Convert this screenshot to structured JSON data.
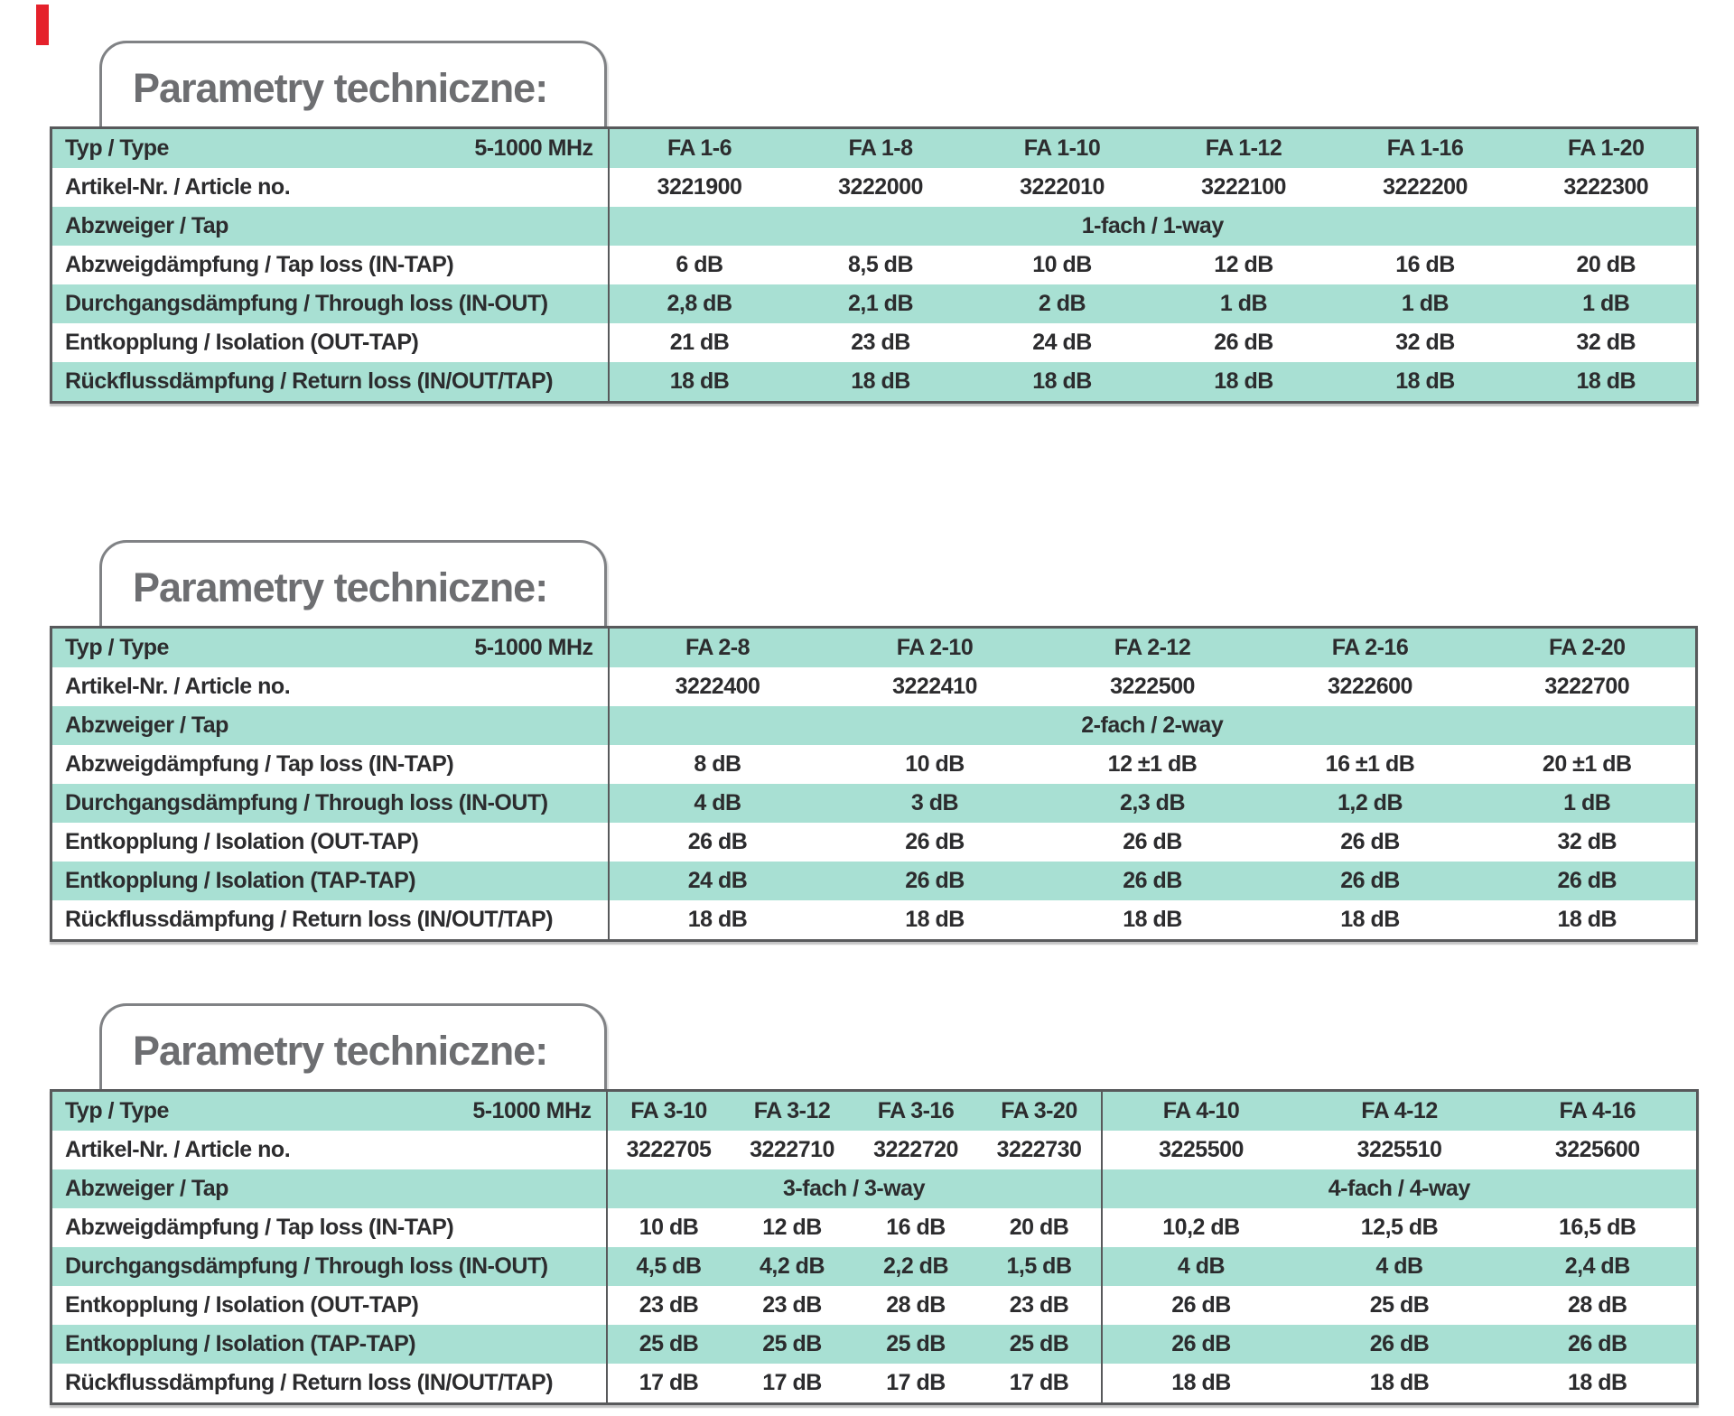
{
  "colors": {
    "teal_band": "#a8e0d3",
    "table_border": "#58595b",
    "title_box_border": "#808285",
    "title_text": "#6d6e71",
    "cell_text": "#2c2c2e",
    "red_mark": "#e5212b"
  },
  "decor": {
    "red_mark": "red-rectangle-top-left"
  },
  "tables": [
    {
      "title": "Parametry techniczne:",
      "type_label": "Typ / Type",
      "freq_label": "5-1000 MHz",
      "columns": [
        "FA 1-6",
        "FA 1-8",
        "FA 1-10",
        "FA 1-12",
        "FA 1-16",
        "FA 1-20"
      ],
      "rows": [
        {
          "label": "Artikel-Nr. / Article no.",
          "values": [
            "3221900",
            "3222000",
            "3222010",
            "3222100",
            "3222200",
            "3222300"
          ]
        },
        {
          "label": "Abzweiger / Tap",
          "spans": [
            {
              "text": "1-fach / 1-way",
              "cols": 6
            }
          ]
        },
        {
          "label": "Abzweigdämpfung / Tap loss (IN-TAP)",
          "values": [
            "6 dB",
            "8,5 dB",
            "10 dB",
            "12 dB",
            "16 dB",
            "20 dB"
          ]
        },
        {
          "label": "Durchgangsdämpfung / Through loss (IN-OUT)",
          "values": [
            "2,8 dB",
            "2,1 dB",
            "2 dB",
            "1 dB",
            "1 dB",
            "1 dB"
          ]
        },
        {
          "label": "Entkopplung / Isolation (OUT-TAP)",
          "values": [
            "21 dB",
            "23 dB",
            "24 dB",
            "26 dB",
            "32 dB",
            "32 dB"
          ]
        },
        {
          "label": "Rückflussdämpfung / Return loss (IN/OUT/TAP)",
          "values": [
            "18 dB",
            "18 dB",
            "18 dB",
            "18 dB",
            "18 dB",
            "18 dB"
          ]
        }
      ]
    },
    {
      "title": "Parametry techniczne:",
      "type_label": "Typ / Type",
      "freq_label": "5-1000 MHz",
      "columns": [
        "FA 2-8",
        "FA 2-10",
        "FA 2-12",
        "FA 2-16",
        "FA 2-20"
      ],
      "rows": [
        {
          "label": "Artikel-Nr. / Article no.",
          "values": [
            "3222400",
            "3222410",
            "3222500",
            "3222600",
            "3222700"
          ]
        },
        {
          "label": "Abzweiger / Tap",
          "spans": [
            {
              "text": "2-fach / 2-way",
              "cols": 5
            }
          ]
        },
        {
          "label": "Abzweigdämpfung / Tap loss (IN-TAP)",
          "values": [
            "8 dB",
            "10 dB",
            "12 ±1 dB",
            "16 ±1 dB",
            "20 ±1 dB"
          ]
        },
        {
          "label": "Durchgangsdämpfung / Through loss (IN-OUT)",
          "values": [
            "4 dB",
            "3 dB",
            "2,3 dB",
            "1,2 dB",
            "1 dB"
          ]
        },
        {
          "label": "Entkopplung / Isolation (OUT-TAP)",
          "values": [
            "26 dB",
            "26 dB",
            "26 dB",
            "26 dB",
            "32 dB"
          ]
        },
        {
          "label": "Entkopplung / Isolation (TAP-TAP)",
          "values": [
            "24 dB",
            "26 dB",
            "26 dB",
            "26 dB",
            "26 dB"
          ]
        },
        {
          "label": "Rückflussdämpfung / Return loss (IN/OUT/TAP)",
          "values": [
            "18 dB",
            "18 dB",
            "18 dB",
            "18 dB",
            "18 dB"
          ]
        }
      ]
    },
    {
      "title": "Parametry techniczne:",
      "type_label": "Typ / Type",
      "freq_label": "5-1000 MHz",
      "columns": [
        "FA 3-10",
        "FA 3-12",
        "FA 3-16",
        "FA 3-20",
        "FA 4-10",
        "FA 4-12",
        "FA 4-16"
      ],
      "rows": [
        {
          "label": "Artikel-Nr. / Article no.",
          "values": [
            "3222705",
            "3222710",
            "3222720",
            "3222730",
            "3225500",
            "3225510",
            "3225600"
          ]
        },
        {
          "label": "Abzweiger / Tap",
          "spans": [
            {
              "text": "3-fach / 3-way",
              "cols": 4
            },
            {
              "text": "4-fach / 4-way",
              "cols": 3
            }
          ]
        },
        {
          "label": "Abzweigdämpfung / Tap loss (IN-TAP)",
          "values": [
            "10 dB",
            "12 dB",
            "16 dB",
            "20 dB",
            "10,2 dB",
            "12,5 dB",
            "16,5 dB"
          ]
        },
        {
          "label": "Durchgangsdämpfung / Through loss (IN-OUT)",
          "values": [
            "4,5 dB",
            "4,2 dB",
            "2,2 dB",
            "1,5 dB",
            "4 dB",
            "4 dB",
            "2,4 dB"
          ]
        },
        {
          "label": "Entkopplung / Isolation (OUT-TAP)",
          "values": [
            "23 dB",
            "23 dB",
            "28 dB",
            "23 dB",
            "26 dB",
            "25 dB",
            "28 dB"
          ]
        },
        {
          "label": "Entkopplung / Isolation (TAP-TAP)",
          "values": [
            "25 dB",
            "25 dB",
            "25 dB",
            "25 dB",
            "26 dB",
            "26 dB",
            "26 dB"
          ]
        },
        {
          "label": "Rückflussdämpfung / Return loss (IN/OUT/TAP)",
          "values": [
            "17 dB",
            "17 dB",
            "17 dB",
            "17 dB",
            "18 dB",
            "18 dB",
            "18 dB"
          ]
        }
      ]
    }
  ]
}
